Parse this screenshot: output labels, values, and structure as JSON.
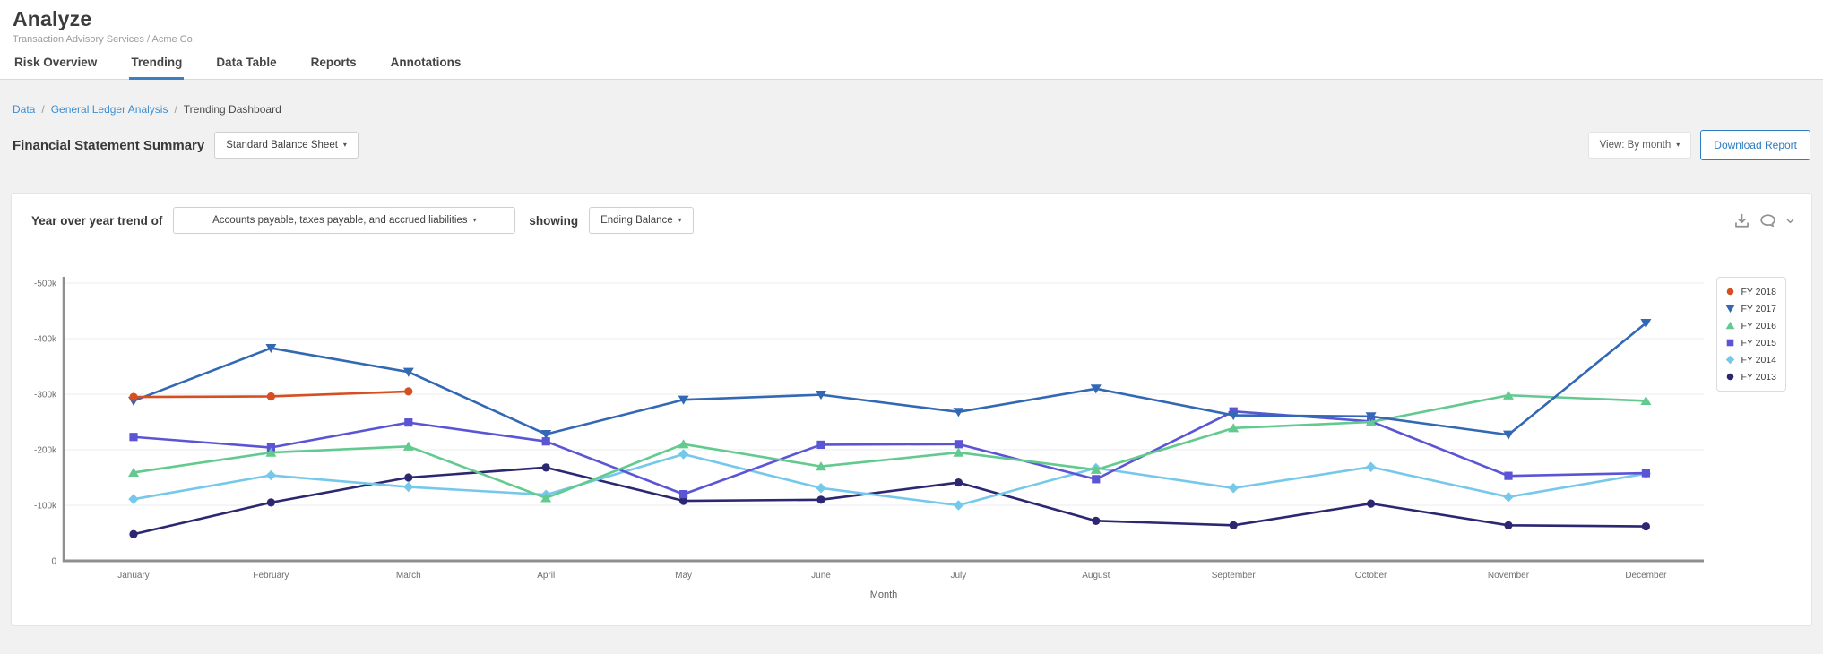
{
  "header": {
    "title": "Analyze",
    "subtitle": "Transaction Advisory Services / Acme Co.",
    "tabs": [
      {
        "label": "Risk Overview",
        "active": false
      },
      {
        "label": "Trending",
        "active": true
      },
      {
        "label": "Data Table",
        "active": false
      },
      {
        "label": "Reports",
        "active": false
      },
      {
        "label": "Annotations",
        "active": false
      }
    ]
  },
  "breadcrumb": {
    "separator": "/",
    "items": [
      {
        "label": "Data",
        "link": true
      },
      {
        "label": "General Ledger Analysis",
        "link": true
      },
      {
        "label": "Trending Dashboard",
        "link": false
      }
    ]
  },
  "summary_bar": {
    "title": "Financial Statement Summary",
    "statement_dropdown": "Standard Balance Sheet",
    "view_dropdown": "View: By month",
    "download_button": "Download Report"
  },
  "trend_card": {
    "prefix_label": "Year over year trend of",
    "account_dropdown": "Accounts payable, taxes payable, and accrued liabilities",
    "showing_label": "showing",
    "metric_dropdown": "Ending Balance",
    "icons": [
      "download-icon",
      "comment-icon",
      "chevron-down-icon"
    ]
  },
  "ui": {
    "caret": "▾"
  },
  "colors": {
    "accent_blue": "#3e7fc1",
    "link_blue": "#3e8ed0",
    "download_blue": "#2e7bbf",
    "page_bg": "#f1f1f1",
    "card_bg": "#ffffff",
    "grid_line": "#ececec",
    "axis_line": "#8f8f8f"
  },
  "chart_data": {
    "type": "line",
    "unit": "thousands",
    "x": [
      "January",
      "February",
      "March",
      "April",
      "May",
      "June",
      "July",
      "August",
      "September",
      "October",
      "November",
      "December"
    ],
    "xlabel": "Month",
    "ylabel": "",
    "ylim": [
      0,
      -500
    ],
    "grid": true,
    "legend_position": "top-right",
    "y_ticks": [
      {
        "label": "-500k",
        "value": -500
      },
      {
        "label": "-400k",
        "value": -400
      },
      {
        "label": "-300k",
        "value": -300
      },
      {
        "label": "-200k",
        "value": -200
      },
      {
        "label": "-100k",
        "value": -100
      },
      {
        "label": "0",
        "value": 0
      }
    ],
    "series": [
      {
        "name": "FY 2018",
        "color": "#d64e21",
        "marker": "circle",
        "values": [
          -295,
          -296,
          -305,
          null,
          null,
          null,
          null,
          null,
          null,
          null,
          null,
          null
        ]
      },
      {
        "name": "FY 2017",
        "color": "#3368b5",
        "marker": "triangle-down",
        "values": [
          -288,
          -383,
          -340,
          -228,
          -290,
          -299,
          -268,
          -310,
          -262,
          -260,
          -227,
          -428
        ]
      },
      {
        "name": "FY 2016",
        "color": "#62ca8e",
        "marker": "triangle-up",
        "values": [
          -159,
          -195,
          -206,
          -113,
          -210,
          -170,
          -195,
          -164,
          -239,
          -250,
          -298,
          -288
        ]
      },
      {
        "name": "FY 2015",
        "color": "#5b55d6",
        "marker": "square",
        "values": [
          -223,
          -204,
          -249,
          -215,
          -120,
          -209,
          -210,
          -147,
          -269,
          -251,
          -153,
          -158
        ]
      },
      {
        "name": "FY 2014",
        "color": "#76c8eb",
        "marker": "diamond",
        "values": [
          -111,
          -154,
          -133,
          -119,
          -192,
          -131,
          -100,
          -167,
          -131,
          -169,
          -115,
          -157
        ]
      },
      {
        "name": "FY 2013",
        "color": "#2b2771",
        "marker": "circle",
        "values": [
          -48,
          -105,
          -150,
          -168,
          -108,
          -110,
          -141,
          -72,
          -64,
          -103,
          -64,
          -62
        ]
      }
    ]
  }
}
